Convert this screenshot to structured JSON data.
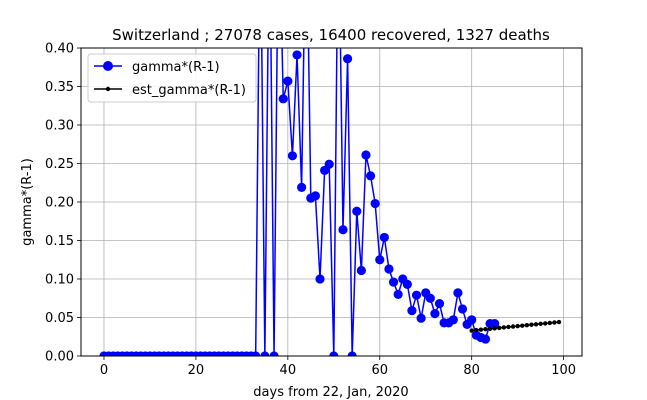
{
  "chart_data": {
    "type": "line",
    "title": "Switzerland ; 27078 cases, 16400 recovered, 1327 deaths",
    "xlabel": "days from 22, Jan, 2020",
    "ylabel": "gamma*(R-1)",
    "xlim": [
      -5,
      104
    ],
    "ylim": [
      0,
      0.4
    ],
    "xticks": [
      0,
      20,
      40,
      60,
      80,
      100
    ],
    "yticks": [
      0.0,
      0.05,
      0.1,
      0.15,
      0.2,
      0.25,
      0.3,
      0.35,
      0.4
    ],
    "xtick_labels": [
      "0",
      "20",
      "40",
      "60",
      "80",
      "100"
    ],
    "ytick_labels": [
      "0.00",
      "0.05",
      "0.10",
      "0.15",
      "0.20",
      "0.25",
      "0.30",
      "0.35",
      "0.40"
    ],
    "grid": true,
    "legend_position": "top-left",
    "series": [
      {
        "name": "gamma*(R-1)",
        "color": "#0000ff",
        "marker": "circle-large",
        "x": [
          0,
          1,
          2,
          3,
          4,
          5,
          6,
          7,
          8,
          9,
          10,
          11,
          12,
          13,
          14,
          15,
          16,
          17,
          18,
          19,
          20,
          21,
          22,
          23,
          24,
          25,
          26,
          27,
          28,
          29,
          30,
          31,
          32,
          33,
          34,
          35,
          36,
          37,
          38,
          39,
          40,
          41,
          42,
          43,
          44,
          45,
          46,
          47,
          48,
          49,
          50,
          51,
          52,
          53,
          54,
          55,
          56,
          57,
          58,
          59,
          60,
          61,
          62,
          63,
          64,
          65,
          66,
          67,
          68,
          69,
          70,
          71,
          72,
          73,
          74,
          75,
          76,
          77,
          78,
          79,
          80,
          81,
          82,
          83,
          84,
          85
        ],
        "y": [
          0,
          0,
          0,
          0,
          0,
          0,
          0,
          0,
          0,
          0,
          0,
          0,
          0,
          0,
          0,
          0,
          0,
          0,
          0,
          0,
          0,
          0,
          0,
          0,
          0,
          0,
          0,
          0,
          0,
          0,
          0,
          0,
          0,
          0,
          0.6,
          0,
          0.6,
          0,
          0.6,
          0.334,
          0.357,
          0.26,
          0.391,
          0.219,
          0.6,
          0.205,
          0.208,
          0.1,
          0.241,
          0.249,
          0,
          0.6,
          0.164,
          0.386,
          0,
          0.188,
          0.111,
          0.261,
          0.234,
          0.198,
          0.125,
          0.154,
          0.113,
          0.096,
          0.08,
          0.1,
          0.093,
          0.059,
          0.079,
          0.049,
          0.082,
          0.075,
          0.055,
          0.068,
          0.043,
          0.043,
          0.047,
          0.082,
          0.061,
          0.041,
          0.047,
          0.027,
          0.024,
          0.022,
          0.042,
          0.042
        ]
      },
      {
        "name": "est_gamma*(R-1)",
        "color": "#000000",
        "marker": "dot-small",
        "x": [
          80,
          81,
          82,
          83,
          84,
          85,
          86,
          87,
          88,
          89,
          90,
          91,
          92,
          93,
          94,
          95,
          96,
          97,
          98,
          99
        ],
        "y": [
          0.033,
          0.0336,
          0.0342,
          0.0348,
          0.0353,
          0.0359,
          0.0365,
          0.0371,
          0.0377,
          0.0383,
          0.0388,
          0.0394,
          0.04,
          0.0406,
          0.0412,
          0.0418,
          0.0423,
          0.0429,
          0.0435,
          0.0441
        ]
      }
    ]
  }
}
